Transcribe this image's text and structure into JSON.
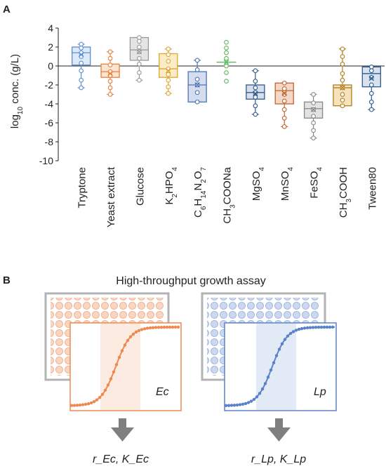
{
  "panel_a": {
    "label": "A",
    "ylabel_main": "log",
    "ylabel_sub": "10",
    "ylabel_rest": " conc. (g/L)"
  },
  "panel_b": {
    "label": "B",
    "title": "High-throughput growth assay",
    "ec_label": "Ec",
    "lp_label": "Lp",
    "ec_output_label": "r_Ec, K_Ec",
    "lp_output_label": "r_Lp, K_Lp"
  },
  "colors": {
    "blue": "#5b8fd1",
    "orange": "#e8813a",
    "gray": "#a0a0a0",
    "green": "#5cb85c",
    "dark_blue": "#2e5a8e",
    "brown": "#c97a30",
    "ec_orange": "#ee8a50",
    "lp_blue": "#5a82c8"
  },
  "chart_data": {
    "type": "box",
    "ylim": [
      -10,
      4
    ],
    "yticks": [
      -10,
      -8,
      -6,
      -4,
      -2,
      0,
      2,
      4
    ],
    "categories": [
      {
        "label": "Tryptone",
        "color": "#5b8fd1",
        "fill": "#dde9f6",
        "q1": 0.1,
        "median": 1.4,
        "q3": 2.0,
        "mean": 1.2,
        "whisker_low": -2.3,
        "whisker_high": 2.3,
        "points": [
          2.3,
          1.9,
          1.4,
          1.0,
          0.3,
          -0.5,
          -1.5,
          -2.3
        ]
      },
      {
        "label": "Yeast extract",
        "color": "#e8813a",
        "fill": "#fbe4d2",
        "q1": -1.2,
        "median": -0.6,
        "q3": 0.2,
        "mean": -0.8,
        "whisker_low": -3.0,
        "whisker_high": 1.5,
        "points": [
          1.5,
          0.8,
          0.1,
          -0.6,
          -1.0,
          -1.6,
          -2.3,
          -3.0
        ]
      },
      {
        "label": "Glucose",
        "color": "#999999",
        "fill": "#e4e4e4",
        "q1": 0.6,
        "median": 1.7,
        "q3": 3.0,
        "mean": 1.5,
        "whisker_low": -1.5,
        "whisker_high": 3.0,
        "points": [
          3.0,
          2.6,
          2.0,
          1.5,
          0.8,
          0.2,
          -0.7,
          -1.5
        ]
      },
      {
        "label": "K2HPO4",
        "label_parts": [
          [
            "K",
            ""
          ],
          [
            "2",
            "sub"
          ],
          [
            "HPO",
            ""
          ],
          [
            "4",
            "sub"
          ]
        ],
        "color": "#e0a52c",
        "fill": "#fbecc8",
        "q1": -1.2,
        "median": -0.3,
        "q3": 1.3,
        "mean": -0.5,
        "whisker_low": -2.9,
        "whisker_high": 1.8,
        "points": [
          1.8,
          1.2,
          0.5,
          -0.3,
          -0.9,
          -1.5,
          -2.2,
          -2.9
        ]
      },
      {
        "label": "C6H14N2O7",
        "label_parts": [
          [
            "C",
            ""
          ],
          [
            "6",
            "sub"
          ],
          [
            "H",
            ""
          ],
          [
            "14",
            "sub"
          ],
          [
            "N",
            ""
          ],
          [
            "2",
            "sub"
          ],
          [
            "O",
            ""
          ],
          [
            "7",
            "sub"
          ]
        ],
        "color": "#4a74b8",
        "fill": "#d4dced",
        "q1": -3.8,
        "median": -2.0,
        "q3": -0.6,
        "mean": -2.0,
        "whisker_low": -3.8,
        "whisker_high": 0.6,
        "points": [
          0.6,
          -0.4,
          -1.4,
          -2.0,
          -2.8,
          -3.8
        ]
      },
      {
        "label": "CH3COONa",
        "label_parts": [
          [
            "CH",
            ""
          ],
          [
            "3",
            "sub"
          ],
          [
            "COONa",
            ""
          ]
        ],
        "color": "#5cb85c",
        "fill": "none",
        "q1": null,
        "median": null,
        "q3": null,
        "mean": 0.4,
        "whisker_low": null,
        "whisker_high": null,
        "points": [
          2.5,
          1.9,
          1.4,
          0.8,
          0.0,
          -0.7,
          -1.6
        ]
      },
      {
        "label": "MgSO4",
        "label_parts": [
          [
            "MgSO",
            ""
          ],
          [
            "4",
            "sub"
          ]
        ],
        "color": "#2e5a8e",
        "fill": "#d6dfea",
        "q1": -3.5,
        "median": -2.8,
        "q3": -2.0,
        "mean": -2.9,
        "whisker_low": -5.1,
        "whisker_high": -0.5,
        "points": [
          -0.5,
          -1.6,
          -2.3,
          -2.8,
          -3.3,
          -4.2,
          -5.1
        ]
      },
      {
        "label": "MnSO4",
        "label_parts": [
          [
            "MnSO",
            ""
          ],
          [
            "4",
            "sub"
          ]
        ],
        "color": "#c0642e",
        "fill": "#f3d8c8",
        "q1": -4.0,
        "median": -2.6,
        "q3": -1.8,
        "mean": -2.9,
        "whisker_low": -6.4,
        "whisker_high": -1.8,
        "points": [
          -1.8,
          -2.4,
          -3.0,
          -3.7,
          -4.6,
          -5.5,
          -6.4
        ]
      },
      {
        "label": "FeSO4",
        "label_parts": [
          [
            "FeSO",
            ""
          ],
          [
            "4",
            "sub"
          ]
        ],
        "color": "#888888",
        "fill": "#e2e2e2",
        "q1": -5.5,
        "median": -4.5,
        "q3": -3.8,
        "mean": -4.6,
        "whisker_low": -7.6,
        "whisker_high": -3.0,
        "points": [
          -3.0,
          -3.9,
          -4.6,
          -5.3,
          -6.0,
          -6.8,
          -7.6
        ]
      },
      {
        "label": "CH3COOH",
        "label_parts": [
          [
            "CH",
            ""
          ],
          [
            "3",
            "sub"
          ],
          [
            "COOH",
            ""
          ]
        ],
        "color": "#b08020",
        "fill": "#f4e3bd",
        "q1": -4.2,
        "median": -2.3,
        "q3": -2.0,
        "mean": -2.3,
        "whisker_low": -4.2,
        "whisker_high": 1.8,
        "points": [
          1.8,
          1.0,
          0.2,
          -0.8,
          -1.5,
          -2.3,
          -3.0,
          -3.6,
          -4.2
        ]
      },
      {
        "label": "Tween80",
        "color": "#2e5a8e",
        "fill": "#d8e2ee",
        "q1": -2.2,
        "median": -0.8,
        "q3": -0.1,
        "mean": -1.3,
        "whisker_low": -4.6,
        "whisker_high": -0.1,
        "points": [
          -0.1,
          -0.5,
          -1.2,
          -2.0,
          -2.9,
          -3.8,
          -4.6
        ]
      }
    ]
  }
}
